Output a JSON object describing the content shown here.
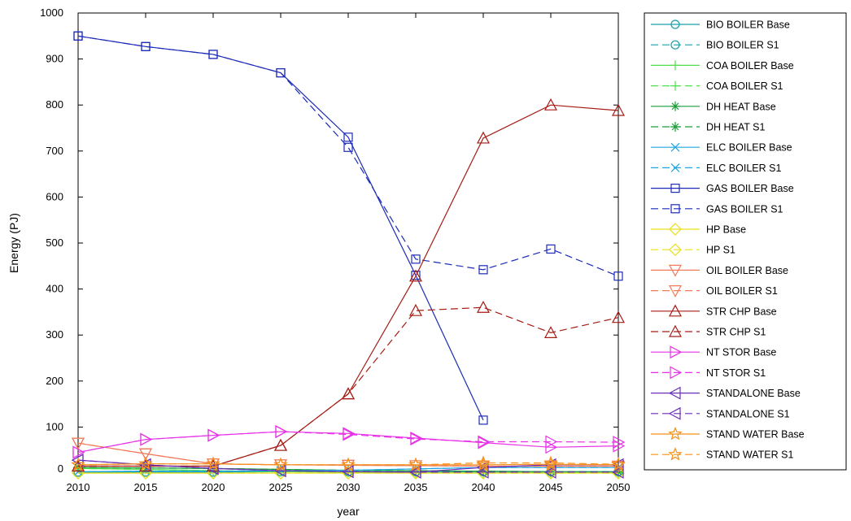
{
  "chart_data": {
    "type": "line",
    "title": "",
    "xlabel": "year",
    "ylabel": "Energy (PJ)",
    "x": [
      2010,
      2015,
      2020,
      2025,
      2030,
      2035,
      2040,
      2045,
      2050
    ],
    "xlim": [
      2010,
      2050
    ],
    "ylim": [
      0,
      1000
    ],
    "xticks": [
      2010,
      2015,
      2020,
      2025,
      2030,
      2035,
      2040,
      2045,
      2050
    ],
    "yticks": [
      0,
      100,
      200,
      300,
      400,
      500,
      600,
      700,
      800,
      900,
      1000
    ],
    "grid": false,
    "legend_position": "outside-right",
    "series": [
      {
        "name": "BIO BOILER Base",
        "color": "#1a9fa6",
        "dash": "solid",
        "marker": "circle",
        "values": [
          2,
          2,
          2,
          3,
          3,
          3,
          3,
          3,
          3
        ]
      },
      {
        "name": "BIO BOILER S1",
        "color": "#1a9fa6",
        "dash": "dashed",
        "marker": "circle",
        "values": [
          2,
          2,
          2,
          3,
          3,
          3,
          3,
          3,
          3
        ]
      },
      {
        "name": "COA BOILER Base",
        "color": "#4ee04e",
        "dash": "solid",
        "marker": "plus",
        "values": [
          10,
          8,
          5,
          3,
          2,
          1,
          1,
          1,
          1
        ]
      },
      {
        "name": "COA BOILER S1",
        "color": "#4ee04e",
        "dash": "dashed",
        "marker": "plus",
        "values": [
          10,
          8,
          5,
          3,
          2,
          1,
          1,
          1,
          1
        ]
      },
      {
        "name": "DH HEAT Base",
        "color": "#1b9e3a",
        "dash": "solid",
        "marker": "asterisk",
        "values": [
          12,
          11,
          10,
          8,
          6,
          5,
          4,
          3,
          3
        ]
      },
      {
        "name": "DH HEAT S1",
        "color": "#1b9e3a",
        "dash": "dashed",
        "marker": "asterisk",
        "values": [
          12,
          11,
          10,
          8,
          6,
          5,
          4,
          3,
          3
        ]
      },
      {
        "name": "ELC BOILER Base",
        "color": "#1fa6e0",
        "dash": "solid",
        "marker": "cross",
        "values": [
          3,
          4,
          4,
          5,
          6,
          9,
          12,
          12,
          12
        ]
      },
      {
        "name": "ELC BOILER S1",
        "color": "#1fa6e0",
        "dash": "dashed",
        "marker": "cross",
        "values": [
          3,
          4,
          4,
          5,
          6,
          9,
          12,
          12,
          12
        ]
      },
      {
        "name": "GAS BOILER Base",
        "color": "#1c2bb8",
        "dash": "solid",
        "marker": "square",
        "values": [
          950,
          927,
          910,
          870,
          730,
          430,
          115,
          null,
          null
        ]
      },
      {
        "name": "GAS BOILER S1",
        "color": "#1c2bb8",
        "dash": "dashed",
        "marker": "square",
        "values": [
          950,
          927,
          910,
          870,
          708,
          465,
          442,
          487,
          428
        ]
      },
      {
        "name": "HP Base",
        "color": "#e6e01a",
        "dash": "solid",
        "marker": "diamond",
        "values": [
          0,
          0,
          0,
          0,
          0,
          0,
          0,
          0,
          0
        ]
      },
      {
        "name": "HP S1",
        "color": "#e6e01a",
        "dash": "dashed",
        "marker": "diamond",
        "values": [
          0,
          0,
          0,
          0,
          0,
          0,
          0,
          0,
          0
        ]
      },
      {
        "name": "OIL BOILER Base",
        "color": "#f07a5a",
        "dash": "solid",
        "marker": "triangle-down",
        "values": [
          65,
          42,
          20,
          18,
          17,
          16,
          15,
          15,
          15
        ]
      },
      {
        "name": "OIL BOILER S1",
        "color": "#f07a5a",
        "dash": "dashed",
        "marker": "triangle-down",
        "values": [
          65,
          42,
          20,
          18,
          17,
          16,
          15,
          15,
          15
        ]
      },
      {
        "name": "STR CHP Base",
        "color": "#a51c14",
        "dash": "solid",
        "marker": "triangle-up",
        "values": [
          15,
          15,
          15,
          60,
          172,
          428,
          728,
          800,
          788
        ]
      },
      {
        "name": "STR CHP S1",
        "color": "#a51c14",
        "dash": "dashed",
        "marker": "triangle-up",
        "values": [
          15,
          15,
          15,
          60,
          172,
          353,
          360,
          305,
          338
        ]
      },
      {
        "name": "NT STOR Base",
        "color": "#e632e6",
        "dash": "solid",
        "marker": "triangle-right",
        "values": [
          45,
          73,
          82,
          90,
          86,
          76,
          66,
          56,
          59
        ]
      },
      {
        "name": "NT STOR S1",
        "color": "#e632e6",
        "dash": "dashed",
        "marker": "triangle-right",
        "values": [
          45,
          73,
          82,
          90,
          84,
          74,
          68,
          68,
          67
        ]
      },
      {
        "name": "STANDALONE Base",
        "color": "#6a2fb8",
        "dash": "solid",
        "marker": "triangle-left",
        "values": [
          28,
          18,
          10,
          5,
          3,
          2,
          12,
          18,
          18
        ]
      },
      {
        "name": "STANDALONE S1",
        "color": "#6a2fb8",
        "dash": "dashed",
        "marker": "triangle-left",
        "values": [
          28,
          18,
          10,
          5,
          3,
          2,
          2,
          2,
          2
        ]
      },
      {
        "name": "STAND WATER Base",
        "color": "#f5901a",
        "dash": "solid",
        "marker": "star",
        "values": [
          18,
          20,
          20,
          18,
          18,
          18,
          18,
          19,
          18
        ]
      },
      {
        "name": "STAND WATER S1",
        "color": "#f5901a",
        "dash": "dashed",
        "marker": "star",
        "values": [
          18,
          20,
          20,
          18,
          18,
          18,
          22,
          22,
          19
        ]
      }
    ]
  }
}
